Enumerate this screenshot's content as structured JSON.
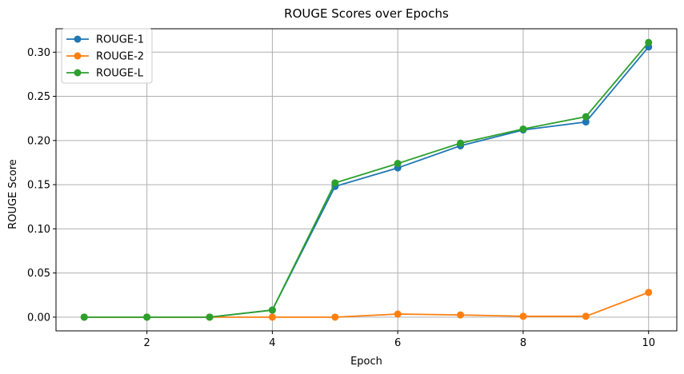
{
  "chart_data": {
    "type": "line",
    "title": "ROUGE Scores over Epochs",
    "xlabel": "Epoch",
    "ylabel": "ROUGE Score",
    "x": [
      1,
      2,
      3,
      4,
      5,
      6,
      7,
      8,
      9,
      10
    ],
    "xlim": [
      0.55,
      10.45
    ],
    "ylim": [
      -0.0155,
      0.3265
    ],
    "xticks": [
      2,
      4,
      6,
      8,
      10
    ],
    "xtick_labels": [
      "2",
      "4",
      "6",
      "8",
      "10"
    ],
    "yticks": [
      0.0,
      0.05,
      0.1,
      0.15,
      0.2,
      0.25,
      0.3
    ],
    "ytick_labels": [
      "0.00",
      "0.05",
      "0.10",
      "0.15",
      "0.20",
      "0.25",
      "0.30"
    ],
    "grid": true,
    "legend_position": "top-left",
    "series": [
      {
        "name": "ROUGE-1",
        "color": "#1f77b4",
        "values": [
          0.0,
          0.0,
          0.0,
          0.008,
          0.148,
          0.169,
          0.194,
          0.212,
          0.221,
          0.306
        ]
      },
      {
        "name": "ROUGE-2",
        "color": "#ff7f0e",
        "values": [
          0.0,
          0.0,
          0.0,
          0.0,
          0.0,
          0.0035,
          0.0025,
          0.001,
          0.001,
          0.028
        ]
      },
      {
        "name": "ROUGE-L",
        "color": "#2ca02c",
        "values": [
          0.0,
          0.0,
          0.0,
          0.008,
          0.152,
          0.174,
          0.197,
          0.213,
          0.227,
          0.311
        ]
      }
    ]
  }
}
